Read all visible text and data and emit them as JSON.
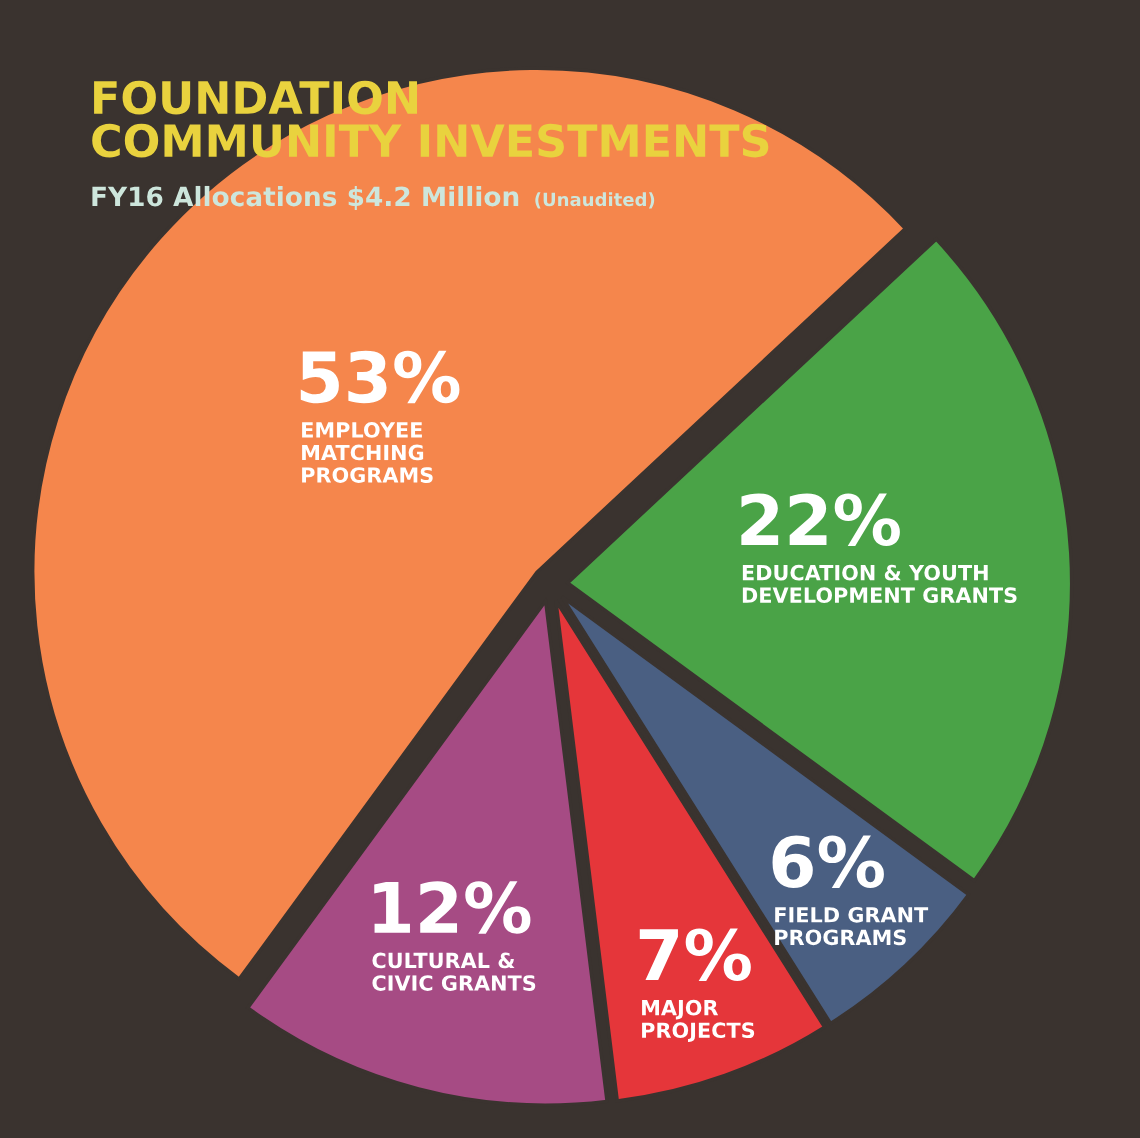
{
  "chart_data": {
    "type": "pie",
    "title": "FOUNDATION\nCOMMUNITY INVESTMENTS",
    "subtitle": "FY16 Allocations $4.2 Million",
    "annotations": [
      "(Unaudited)"
    ],
    "categories": [
      "EMPLOYEE\nMATCHING\nPROGRAMS",
      "EDUCATION & YOUTH\nDEVELOPMENT GRANTS",
      "FIELD GRANT\nPROGRAMS",
      "MAJOR\nPROJECTS",
      "CULTURAL &\nCIVIC GRANTS"
    ],
    "values": [
      53,
      22,
      6,
      7,
      12
    ],
    "colors": [
      "#f5864c",
      "#4aa347",
      "#4a5f82",
      "#e5363a",
      "#a64b84"
    ],
    "value_labels": [
      "53%",
      "22%",
      "6%",
      "7%",
      "12%"
    ]
  }
}
